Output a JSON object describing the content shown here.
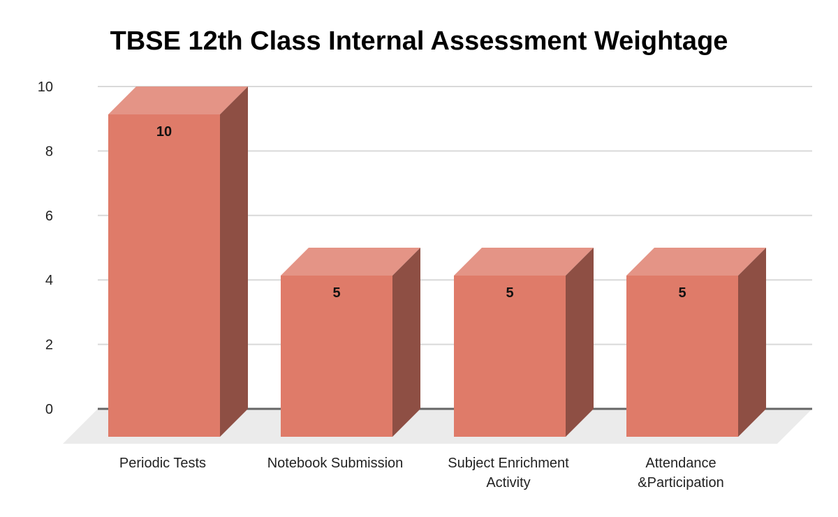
{
  "chart_data": {
    "type": "bar",
    "style": "3d",
    "title": "TBSE 12th Class Internal Assessment Weightage",
    "xlabel": "",
    "ylabel": "",
    "categories": [
      "Periodic Tests",
      "Notebook Submission",
      "Subject Enrichment Activity",
      "Attendance &Participation"
    ],
    "category_lines": [
      [
        "Periodic Tests"
      ],
      [
        "Notebook Submission"
      ],
      [
        "Subject Enrichment",
        "Activity"
      ],
      [
        "Attendance",
        "&Participation"
      ]
    ],
    "values": [
      10,
      5,
      5,
      5
    ],
    "data_labels": [
      "10",
      "5",
      "5",
      "5"
    ],
    "ylim": [
      0,
      10
    ],
    "yticks": [
      0,
      2,
      4,
      6,
      8,
      10
    ],
    "grid": true,
    "legend": null,
    "colors": {
      "bar_front": "#df7b69",
      "bar_top": "#e49486",
      "bar_side": "#8e4f44",
      "floor": "#ebebeb",
      "grid": "#d9d9d9",
      "baseline": "#666666"
    }
  }
}
